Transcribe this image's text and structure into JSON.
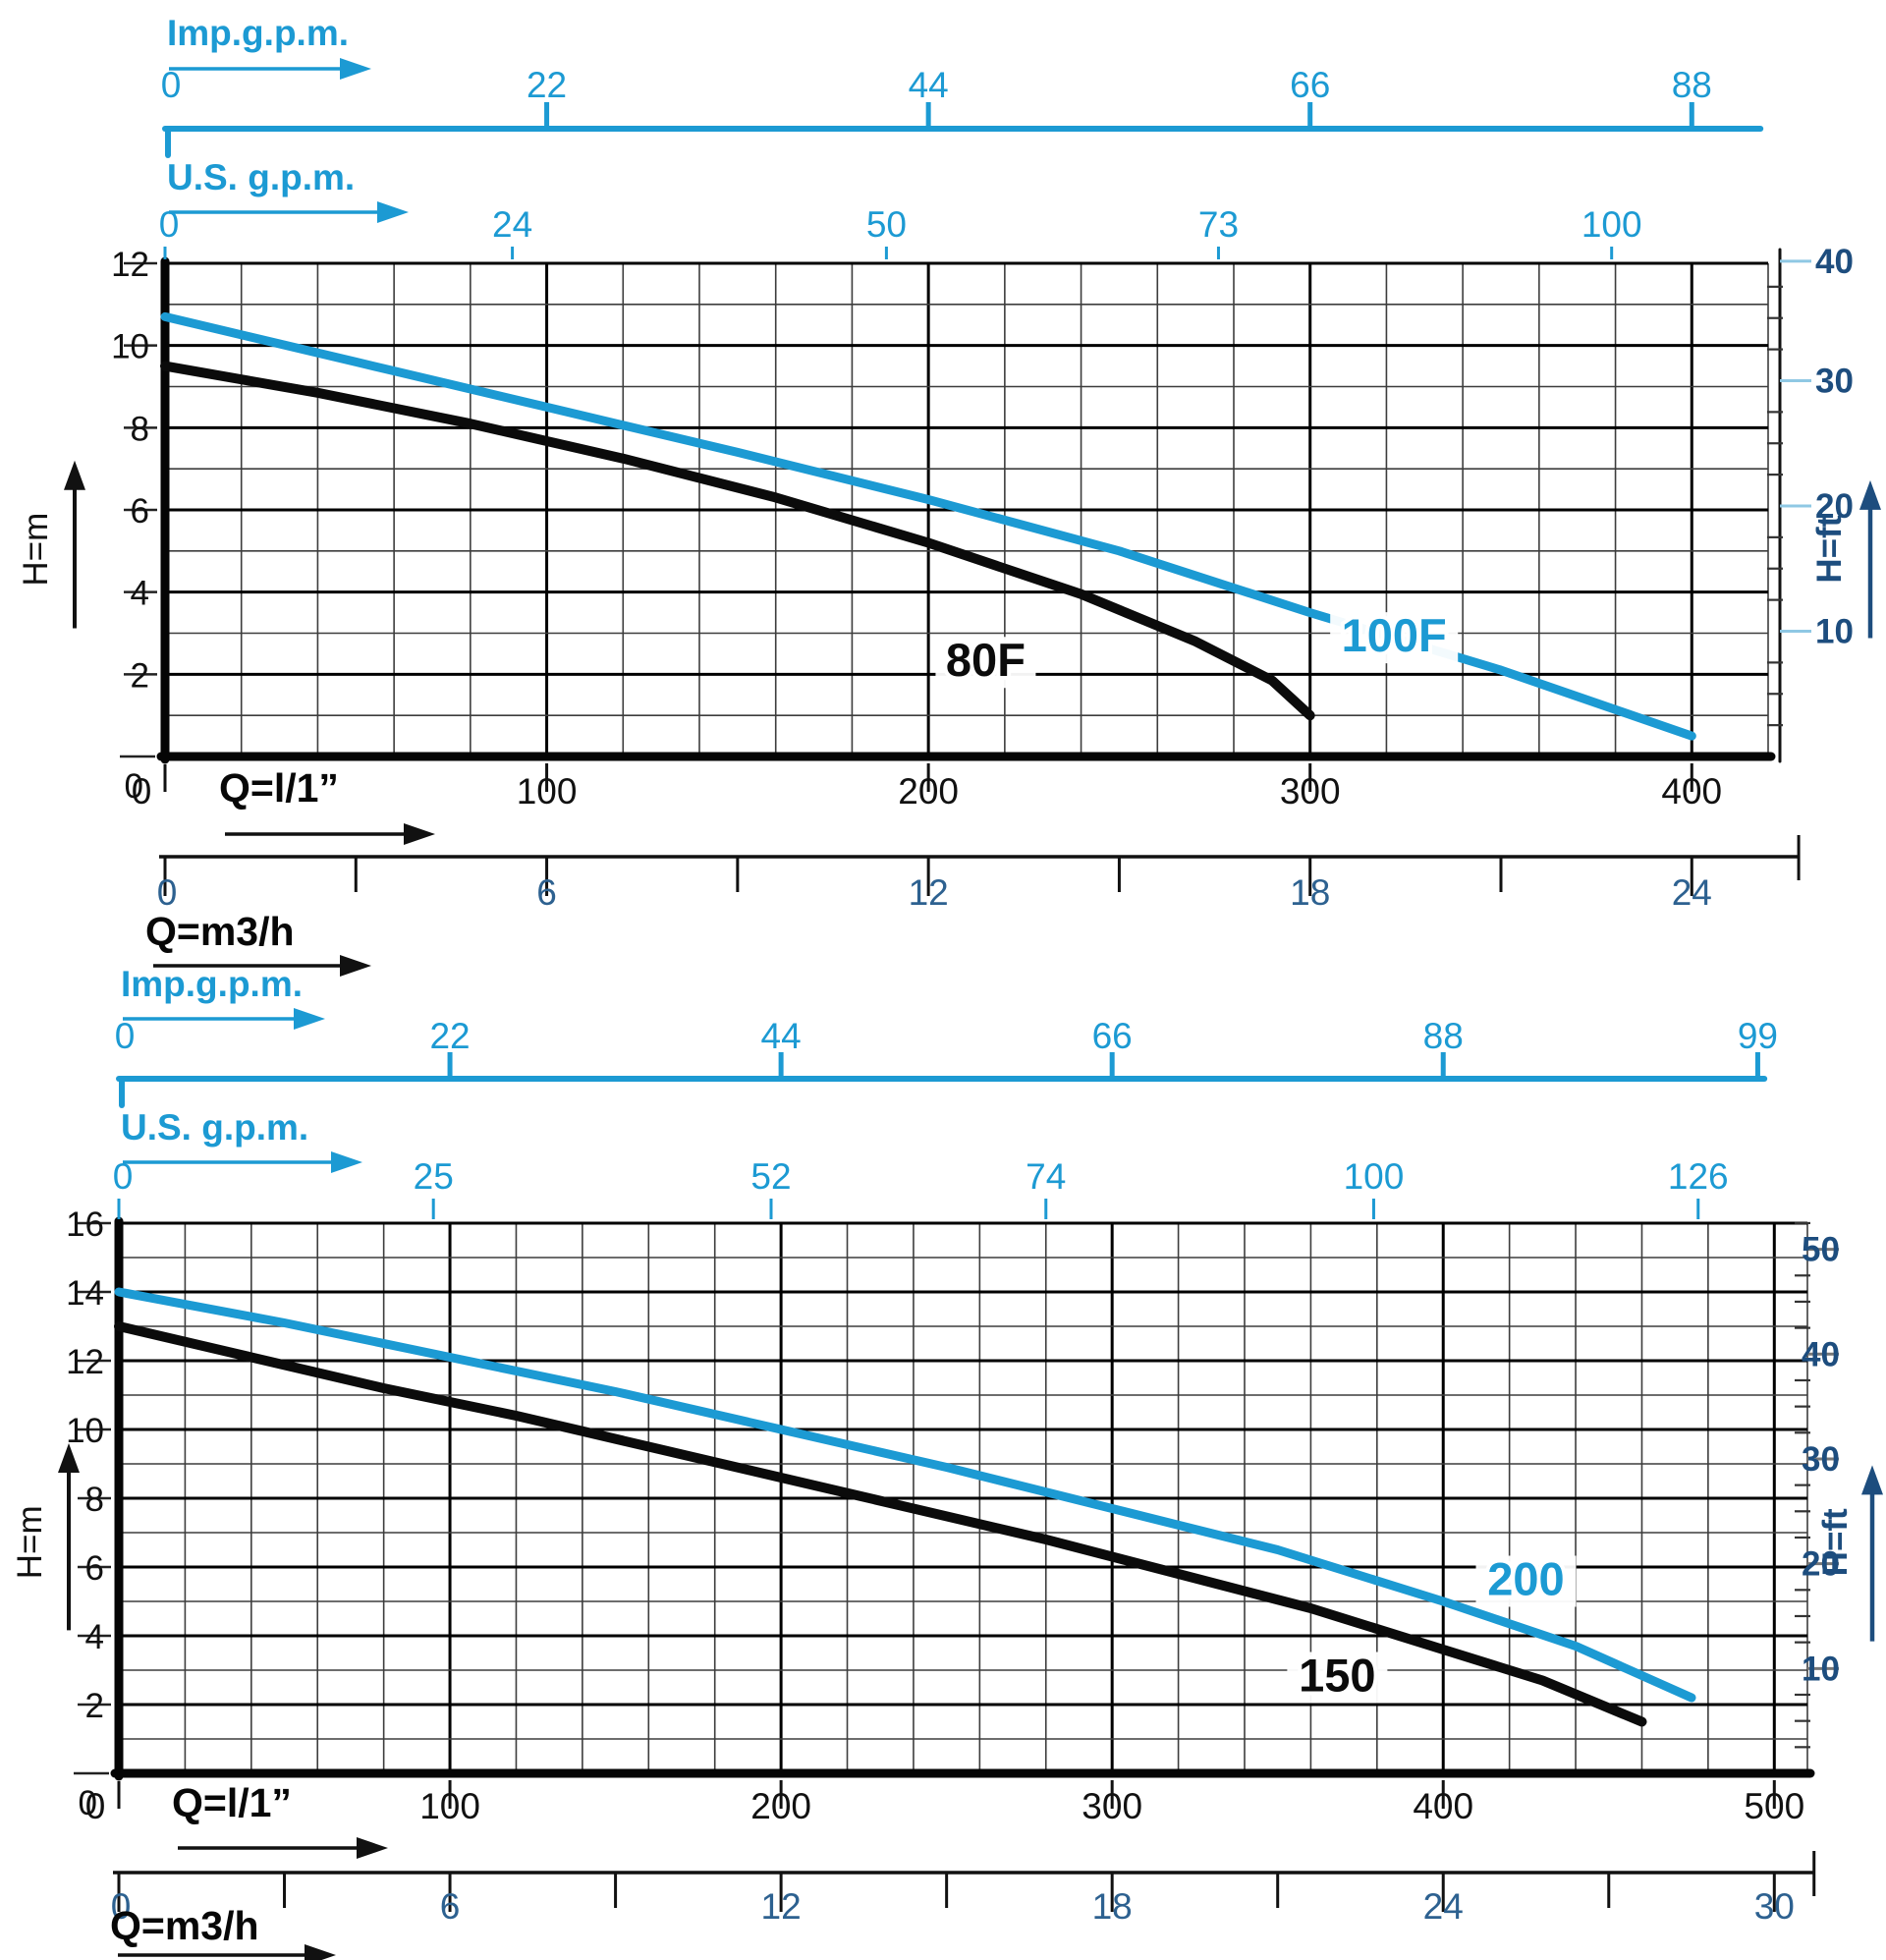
{
  "page": {
    "background": "#ffffff",
    "description": "Pump performance curves, head vs flow, two charts"
  },
  "colors": {
    "cyan": "#1c9ad3",
    "cyan_stub": "#8fc8e4",
    "navy": "#1d4d7e",
    "steel": "#2d6190",
    "black": "#0b0b0b",
    "grid_minor": "#3d3d3d",
    "grid_major": "#000000",
    "stub_gray": "#777777"
  },
  "chart_data": [
    {
      "id": "top",
      "type": "line",
      "flow_axis_max_lmin": 420,
      "head_axis_max_m": 12,
      "grid": {
        "x_minor_lmin": 20,
        "x_major_lmin": 100,
        "y_minor_m": 1,
        "y_major_m": 2
      },
      "imp_gpm": {
        "title": "Imp.g.p.m.",
        "ticks": [
          [
            "0",
            0
          ],
          [
            "22",
            100
          ],
          [
            "44",
            200
          ],
          [
            "66",
            300
          ],
          [
            "88",
            400
          ]
        ],
        "axis_end_lmin": 418
      },
      "us_gpm": {
        "title": "U.S. g.p.m.",
        "ticks": [
          [
            "0",
            0
          ],
          [
            "24",
            91
          ],
          [
            "50",
            189
          ],
          [
            "73",
            276
          ],
          [
            "100",
            379
          ]
        ]
      },
      "q_lmin": {
        "title": "Q=l/1”",
        "ticks": [
          [
            "0",
            0
          ],
          [
            "100",
            100
          ],
          [
            "200",
            200
          ],
          [
            "300",
            300
          ],
          [
            "400",
            400
          ]
        ]
      },
      "q_m3h": {
        "title": "Q=m3/h",
        "ticks": [
          [
            "0",
            0
          ],
          [
            "6",
            100
          ],
          [
            "12",
            200
          ],
          [
            "18",
            300
          ],
          [
            "24",
            400
          ]
        ],
        "minor_ticks_lmin": [
          50,
          150,
          250,
          350
        ],
        "axis_end_lmin": 428
      },
      "h_m": {
        "title": "H=m",
        "zero_label": "0",
        "major_labels": [
          2,
          4,
          6,
          8,
          10,
          12
        ]
      },
      "h_ft": {
        "title": "H=ft",
        "labels": [
          10,
          20,
          30,
          40
        ]
      },
      "series": [
        {
          "name": "80F",
          "color_key": "black",
          "label": {
            "lmin": 215,
            "m": 2.05
          },
          "points_lmin_m": [
            [
              0,
              9.5
            ],
            [
              40,
              8.85
            ],
            [
              80,
              8.1
            ],
            [
              120,
              7.25
            ],
            [
              160,
              6.3
            ],
            [
              200,
              5.2
            ],
            [
              240,
              3.95
            ],
            [
              270,
              2.8
            ],
            [
              290,
              1.85
            ],
            [
              300,
              1.0
            ]
          ]
        },
        {
          "name": "100F",
          "color_key": "cyan",
          "label": {
            "lmin": 322,
            "m": 2.65
          },
          "points_lmin_m": [
            [
              0,
              10.7
            ],
            [
              50,
              9.6
            ],
            [
              100,
              8.5
            ],
            [
              150,
              7.4
            ],
            [
              200,
              6.25
            ],
            [
              250,
              5.0
            ],
            [
              300,
              3.5
            ],
            [
              350,
              2.1
            ],
            [
              400,
              0.5
            ]
          ]
        }
      ]
    },
    {
      "id": "bottom",
      "type": "line",
      "flow_axis_max_lmin": 510,
      "head_axis_max_m": 16,
      "grid": {
        "x_minor_lmin": 20,
        "x_major_lmin": 100,
        "y_minor_m": 1,
        "y_major_m": 2
      },
      "imp_gpm": {
        "title": "Imp.g.p.m.",
        "ticks": [
          [
            "0",
            0
          ],
          [
            "22",
            100
          ],
          [
            "44",
            200
          ],
          [
            "66",
            300
          ],
          [
            "88",
            400
          ],
          [
            "99",
            495
          ]
        ],
        "axis_end_lmin": 497
      },
      "us_gpm": {
        "title": "U.S. g.p.m.",
        "ticks": [
          [
            "0",
            0
          ],
          [
            "25",
            95
          ],
          [
            "52",
            197
          ],
          [
            "74",
            280
          ],
          [
            "100",
            379
          ],
          [
            "126",
            477
          ]
        ]
      },
      "q_lmin": {
        "title": "Q=l/1”",
        "ticks": [
          [
            "0",
            0
          ],
          [
            "100",
            100
          ],
          [
            "200",
            200
          ],
          [
            "300",
            300
          ],
          [
            "400",
            400
          ],
          [
            "500",
            500
          ]
        ]
      },
      "q_m3h": {
        "title": "Q=m3/h",
        "ticks": [
          [
            "0",
            0
          ],
          [
            "6",
            100
          ],
          [
            "12",
            200
          ],
          [
            "18",
            300
          ],
          [
            "24",
            400
          ],
          [
            "30",
            500
          ]
        ],
        "minor_ticks_lmin": [
          50,
          150,
          250,
          350,
          450
        ],
        "axis_end_lmin": 512
      },
      "h_m": {
        "title": "H=m",
        "zero_label": "0",
        "major_labels": [
          2,
          4,
          6,
          8,
          10,
          12,
          14,
          16
        ]
      },
      "h_ft": {
        "title": "H=ft",
        "labels": [
          10,
          20,
          30,
          40,
          50
        ]
      },
      "series": [
        {
          "name": "150",
          "color_key": "black",
          "label": {
            "lmin": 368,
            "m": 2.5
          },
          "points_lmin_m": [
            [
              0,
              13.0
            ],
            [
              40,
              12.1
            ],
            [
              80,
              11.2
            ],
            [
              120,
              10.4
            ],
            [
              160,
              9.5
            ],
            [
              200,
              8.6
            ],
            [
              240,
              7.7
            ],
            [
              280,
              6.8
            ],
            [
              320,
              5.8
            ],
            [
              360,
              4.8
            ],
            [
              400,
              3.6
            ],
            [
              430,
              2.7
            ],
            [
              460,
              1.5
            ]
          ]
        },
        {
          "name": "200",
          "color_key": "cyan",
          "label": {
            "lmin": 425,
            "m": 5.3
          },
          "points_lmin_m": [
            [
              0,
              14.0
            ],
            [
              50,
              13.1
            ],
            [
              100,
              12.1
            ],
            [
              150,
              11.1
            ],
            [
              200,
              10.0
            ],
            [
              250,
              8.9
            ],
            [
              300,
              7.7
            ],
            [
              350,
              6.5
            ],
            [
              400,
              5.0
            ],
            [
              440,
              3.7
            ],
            [
              475,
              2.2
            ]
          ]
        }
      ]
    }
  ]
}
